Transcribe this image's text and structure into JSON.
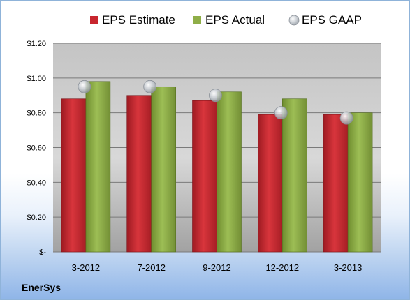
{
  "chart_data": {
    "type": "bar",
    "categories": [
      "3-2012",
      "7-2012",
      "9-2012",
      "12-2012",
      "3-2013"
    ],
    "series": [
      {
        "name": "EPS Estimate",
        "kind": "bar",
        "values": [
          0.88,
          0.9,
          0.87,
          0.79,
          0.79
        ]
      },
      {
        "name": "EPS Actual",
        "kind": "bar",
        "values": [
          0.98,
          0.95,
          0.92,
          0.88,
          0.8
        ]
      },
      {
        "name": "EPS GAAP",
        "kind": "marker",
        "values": [
          0.95,
          0.95,
          0.9,
          0.8,
          0.77
        ]
      }
    ],
    "ylim": [
      0,
      1.2
    ],
    "yticks": [
      0,
      0.2,
      0.4,
      0.6,
      0.8,
      1.0,
      1.2
    ],
    "ytick_labels": [
      "$-",
      "$0.20",
      "$0.40",
      "$0.60",
      "$0.80",
      "$1.00",
      "$1.20"
    ],
    "grid": true,
    "legend_position": "top",
    "colors": {
      "estimate": "#c8262e",
      "actual": "#8fae48",
      "gaap": "#c6cbd1"
    }
  },
  "company": "EnerSys"
}
